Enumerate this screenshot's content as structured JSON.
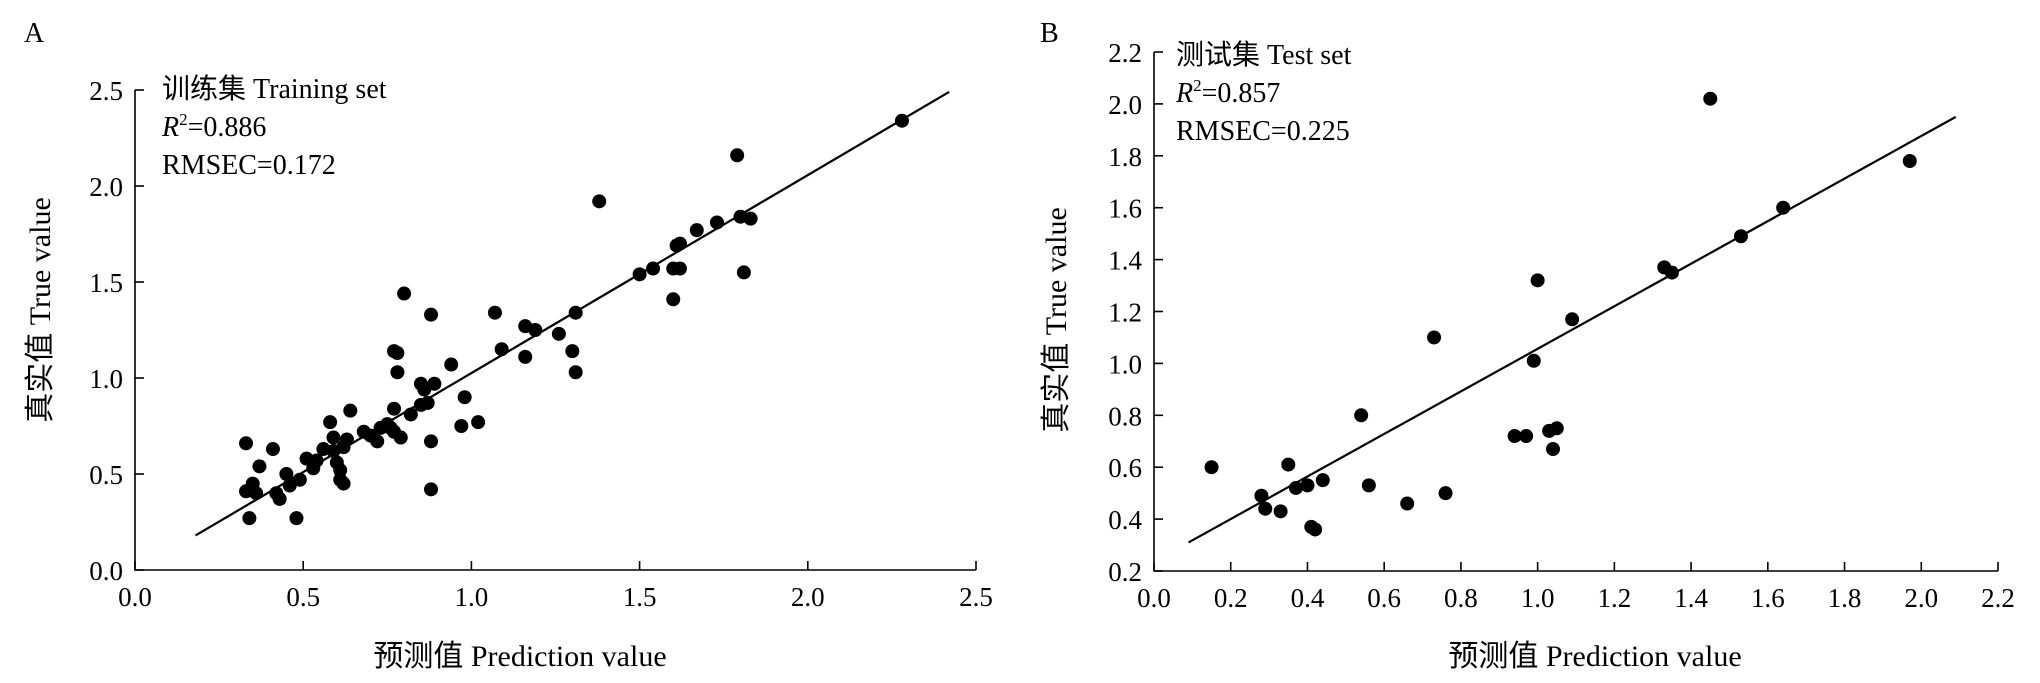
{
  "chart_data": [
    {
      "type": "scatter",
      "panel": "A",
      "title": "",
      "xlabel": "预测值 Prediction value",
      "ylabel": "真实值 True value",
      "xlim": [
        0.0,
        2.5
      ],
      "ylim": [
        0.0,
        2.5
      ],
      "xticks": [
        "0.0",
        "0.5",
        "1.0",
        "1.5",
        "2.0",
        "2.5"
      ],
      "yticks": [
        "0.0",
        "0.5",
        "1.0",
        "1.5",
        "2.0",
        "2.5"
      ],
      "grid": false,
      "annotations": {
        "set_name": "训练集 Training set",
        "r2_symbol": "R",
        "r2_sup": "2",
        "r2_value": "=0.886",
        "rmse": "RMSEC=0.172"
      },
      "fit_line": {
        "x": [
          0.18,
          2.42
        ],
        "y": [
          0.18,
          2.49
        ]
      },
      "points": [
        [
          0.33,
          0.41
        ],
        [
          0.33,
          0.66
        ],
        [
          0.34,
          0.27
        ],
        [
          0.35,
          0.45
        ],
        [
          0.36,
          0.4
        ],
        [
          0.37,
          0.54
        ],
        [
          0.41,
          0.63
        ],
        [
          0.42,
          0.4
        ],
        [
          0.43,
          0.37
        ],
        [
          0.45,
          0.5
        ],
        [
          0.46,
          0.44
        ],
        [
          0.48,
          0.27
        ],
        [
          0.49,
          0.47
        ],
        [
          0.51,
          0.58
        ],
        [
          0.53,
          0.53
        ],
        [
          0.54,
          0.57
        ],
        [
          0.56,
          0.63
        ],
        [
          0.58,
          0.77
        ],
        [
          0.59,
          0.62
        ],
        [
          0.59,
          0.69
        ],
        [
          0.6,
          0.56
        ],
        [
          0.61,
          0.52
        ],
        [
          0.61,
          0.47
        ],
        [
          0.62,
          0.45
        ],
        [
          0.62,
          0.64
        ],
        [
          0.63,
          0.68
        ],
        [
          0.64,
          0.83
        ],
        [
          0.68,
          0.72
        ],
        [
          0.7,
          0.7
        ],
        [
          0.72,
          0.67
        ],
        [
          0.73,
          0.74
        ],
        [
          0.75,
          0.76
        ],
        [
          0.76,
          0.74
        ],
        [
          0.77,
          0.72
        ],
        [
          0.77,
          0.84
        ],
        [
          0.77,
          1.14
        ],
        [
          0.78,
          1.13
        ],
        [
          0.78,
          1.03
        ],
        [
          0.79,
          0.69
        ],
        [
          0.8,
          1.44
        ],
        [
          0.82,
          0.81
        ],
        [
          0.85,
          0.97
        ],
        [
          0.85,
          0.86
        ],
        [
          0.86,
          0.94
        ],
        [
          0.87,
          0.87
        ],
        [
          0.88,
          1.33
        ],
        [
          0.88,
          0.67
        ],
        [
          0.88,
          0.42
        ],
        [
          0.89,
          0.97
        ],
        [
          0.94,
          1.07
        ],
        [
          0.97,
          0.75
        ],
        [
          0.98,
          0.9
        ],
        [
          1.02,
          0.77
        ],
        [
          1.07,
          1.34
        ],
        [
          1.09,
          1.15
        ],
        [
          1.16,
          1.27
        ],
        [
          1.16,
          1.11
        ],
        [
          1.19,
          1.25
        ],
        [
          1.26,
          1.23
        ],
        [
          1.3,
          1.14
        ],
        [
          1.31,
          1.03
        ],
        [
          1.31,
          1.34
        ],
        [
          1.38,
          1.92
        ],
        [
          1.5,
          1.54
        ],
        [
          1.54,
          1.57
        ],
        [
          1.6,
          1.41
        ],
        [
          1.6,
          1.57
        ],
        [
          1.61,
          1.69
        ],
        [
          1.62,
          1.7
        ],
        [
          1.62,
          1.57
        ],
        [
          1.67,
          1.77
        ],
        [
          1.73,
          1.81
        ],
        [
          1.79,
          2.16
        ],
        [
          1.8,
          1.84
        ],
        [
          1.81,
          1.55
        ],
        [
          1.83,
          1.83
        ],
        [
          2.28,
          2.34
        ]
      ]
    },
    {
      "type": "scatter",
      "panel": "B",
      "title": "",
      "xlabel": "预测值 Prediction value",
      "ylabel": "真实值 True value",
      "xlim": [
        0.0,
        2.2
      ],
      "ylim": [
        0.2,
        2.2
      ],
      "xticks": [
        "0.0",
        "0.2",
        "0.4",
        "0.6",
        "0.8",
        "1.0",
        "1.2",
        "1.4",
        "1.6",
        "1.8",
        "2.0",
        "2.2"
      ],
      "yticks": [
        "0.2",
        "0.4",
        "0.6",
        "0.8",
        "1.0",
        "1.2",
        "1.4",
        "1.6",
        "1.8",
        "2.0",
        "2.2"
      ],
      "grid": false,
      "annotations": {
        "set_name": "测试集 Test set",
        "r2_symbol": "R",
        "r2_sup": "2",
        "r2_value": "=0.857",
        "rmse": "RMSEC=0.225"
      },
      "fit_line": {
        "x": [
          0.09,
          2.09
        ],
        "y": [
          0.31,
          1.95
        ]
      },
      "points": [
        [
          0.15,
          0.6
        ],
        [
          0.28,
          0.49
        ],
        [
          0.29,
          0.44
        ],
        [
          0.33,
          0.43
        ],
        [
          0.35,
          0.61
        ],
        [
          0.37,
          0.52
        ],
        [
          0.4,
          0.53
        ],
        [
          0.41,
          0.37
        ],
        [
          0.42,
          0.36
        ],
        [
          0.44,
          0.55
        ],
        [
          0.54,
          0.8
        ],
        [
          0.56,
          0.53
        ],
        [
          0.66,
          0.46
        ],
        [
          0.73,
          1.1
        ],
        [
          0.76,
          0.5
        ],
        [
          0.94,
          0.72
        ],
        [
          0.97,
          0.72
        ],
        [
          0.99,
          1.01
        ],
        [
          1.0,
          1.32
        ],
        [
          1.03,
          0.74
        ],
        [
          1.04,
          0.67
        ],
        [
          1.05,
          0.75
        ],
        [
          1.09,
          1.17
        ],
        [
          1.33,
          1.37
        ],
        [
          1.35,
          1.35
        ],
        [
          1.45,
          2.02
        ],
        [
          1.53,
          1.49
        ],
        [
          1.64,
          1.6
        ],
        [
          1.97,
          1.78
        ]
      ]
    }
  ]
}
